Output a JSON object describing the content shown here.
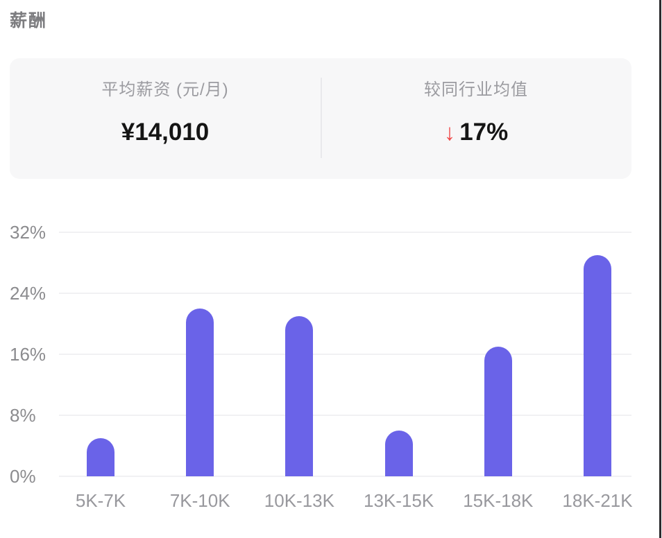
{
  "page": {
    "title": "薪酬"
  },
  "stats_card": {
    "left": {
      "label": "平均薪资 (元/月)",
      "value": "¥14,010"
    },
    "right": {
      "label": "较同行业均值",
      "arrow": "↓",
      "direction": "down",
      "value": "17%"
    }
  },
  "chart_data": {
    "type": "bar",
    "title": "薪酬",
    "categories": [
      "5K-7K",
      "7K-10K",
      "10K-13K",
      "13K-15K",
      "15K-18K",
      "18K-21K"
    ],
    "values": [
      5,
      22,
      21,
      6,
      17,
      29
    ],
    "unit": "%",
    "xlabel": "",
    "ylabel": "",
    "ylim": [
      0,
      32
    ],
    "yticks": [
      0,
      8,
      16,
      24,
      32
    ],
    "ytick_labels": [
      "0%",
      "8%",
      "16%",
      "24%",
      "32%"
    ],
    "grid": true,
    "legend": "none",
    "bar_color": "#6a63e8"
  },
  "colors": {
    "bar": "#6a63e8",
    "card_bg": "#f7f7f8",
    "label_gray": "#9b9ba0",
    "value_dark": "#151515",
    "arrow_red": "#ef4b4b",
    "gridline": "#f1f1f3",
    "axis_gray": "#8b8b8e"
  }
}
